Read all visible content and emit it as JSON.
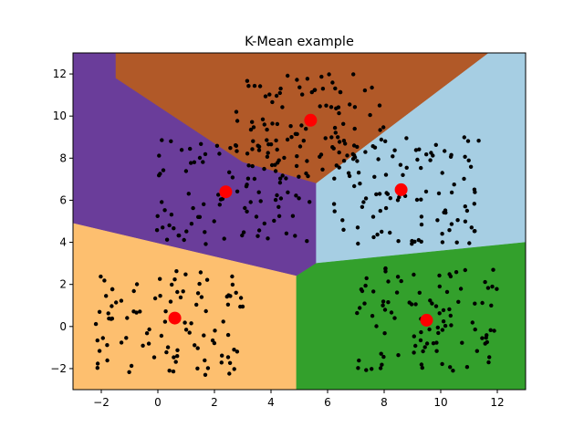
{
  "chart_data": {
    "type": "scatter",
    "title": "K-Mean example",
    "xlabel": "",
    "ylabel": "",
    "xlim": [
      -3,
      13
    ],
    "ylim": [
      -3,
      13
    ],
    "x_ticks": [
      "−2",
      "0",
      "2",
      "4",
      "6",
      "8",
      "10",
      "12"
    ],
    "y_ticks": [
      "−2",
      "0",
      "2",
      "4",
      "6",
      "8",
      "10",
      "12"
    ],
    "grid": false,
    "regions": [
      {
        "color": "#b15928",
        "polygon": [
          [
            -1.5,
            13
          ],
          [
            11.7,
            13
          ],
          [
            5.6,
            6.8
          ],
          [
            3.0,
            7.8
          ],
          [
            -1.5,
            11.8
          ]
        ]
      },
      {
        "color": "#6a3d9a",
        "polygon": [
          [
            -3,
            13
          ],
          [
            -1.5,
            13
          ],
          [
            -1.5,
            11.8
          ],
          [
            3.0,
            7.8
          ],
          [
            5.6,
            6.8
          ],
          [
            5.6,
            3.0
          ],
          [
            4.9,
            2.4
          ],
          [
            -3,
            4.9
          ]
        ]
      },
      {
        "color": "#a6cee3",
        "polygon": [
          [
            11.7,
            13
          ],
          [
            13,
            13
          ],
          [
            13,
            4.0
          ],
          [
            5.6,
            3.0
          ],
          [
            5.6,
            6.8
          ]
        ]
      },
      {
        "color": "#fdbf6f",
        "polygon": [
          [
            -3,
            4.9
          ],
          [
            4.9,
            2.4
          ],
          [
            4.9,
            -3
          ],
          [
            -3,
            -3
          ]
        ]
      },
      {
        "color": "#33a02c",
        "polygon": [
          [
            4.9,
            2.4
          ],
          [
            5.6,
            3.0
          ],
          [
            13,
            4.0
          ],
          [
            13,
            -3
          ],
          [
            4.9,
            -3
          ]
        ]
      }
    ],
    "clusters": [
      {
        "center": [
          5.4,
          9.8
        ],
        "x_range": [
          2.7,
          8.0
        ],
        "y_range": [
          7.0,
          12.0
        ],
        "n": 100
      },
      {
        "center": [
          2.4,
          6.4
        ],
        "x_range": [
          -0.1,
          5.4
        ],
        "y_range": [
          3.9,
          8.9
        ],
        "n": 100
      },
      {
        "center": [
          8.6,
          6.5
        ],
        "x_range": [
          6.2,
          11.4
        ],
        "y_range": [
          3.9,
          9.0
        ],
        "n": 100
      },
      {
        "center": [
          0.6,
          0.4
        ],
        "x_range": [
          -2.2,
          3.1
        ],
        "y_range": [
          -2.3,
          2.8
        ],
        "n": 100
      },
      {
        "center": [
          9.5,
          0.3
        ],
        "x_range": [
          7.0,
          12.0
        ],
        "y_range": [
          -2.2,
          2.9
        ],
        "n": 100
      }
    ],
    "point_color": "#000000",
    "center_color": "#ff0000"
  }
}
